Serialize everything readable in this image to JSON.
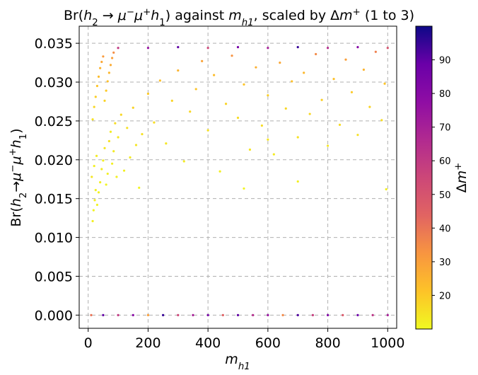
{
  "chart_data": {
    "type": "scatter",
    "title_parts": [
      "Br(",
      "h",
      "2",
      " → ",
      "μ",
      "−",
      "μ",
      "+",
      "h",
      "1",
      ") against ",
      "m",
      "h1",
      ", scaled by Δ",
      "m",
      "+",
      " (1 to 3)"
    ],
    "xlabel_parts": [
      "m",
      "h1"
    ],
    "ylabel_parts": [
      "Br(",
      "h",
      "2",
      "→",
      "μ",
      "−",
      "μ",
      "+",
      "h",
      "1",
      ")"
    ],
    "colorbar_label_parts": [
      "Δ",
      "m",
      "+"
    ],
    "xlim": [
      -30,
      1030
    ],
    "ylim": [
      -0.0017,
      0.0372
    ],
    "x_ticks": [
      0,
      200,
      400,
      600,
      800,
      1000
    ],
    "x_tick_labels": [
      "0",
      "200",
      "400",
      "600",
      "800",
      "1000"
    ],
    "y_ticks": [
      0.0,
      0.005,
      0.01,
      0.015,
      0.02,
      0.025,
      0.03,
      0.035
    ],
    "y_tick_labels": [
      "0.000",
      "0.005",
      "0.010",
      "0.015",
      "0.020",
      "0.025",
      "0.030",
      "0.035"
    ],
    "grid": true,
    "colorbar": {
      "colormap": "plasma_r",
      "range": [
        10,
        100
      ],
      "ticks": [
        20,
        30,
        40,
        50,
        60,
        70,
        80,
        90
      ],
      "tick_labels": [
        "20",
        "30",
        "40",
        "50",
        "60",
        "70",
        "80",
        "90"
      ]
    },
    "series": [
      {
        "kind": "upper-band",
        "x_range": [
          10,
          1000
        ],
        "y_cap": 0.0345,
        "points": [
          [
            15,
            0.0121,
            12
          ],
          [
            18,
            0.0135,
            11
          ],
          [
            22,
            0.0148,
            13
          ],
          [
            25,
            0.0161,
            12
          ],
          [
            30,
            0.0142,
            11
          ],
          [
            12,
            0.0178,
            14
          ],
          [
            20,
            0.0192,
            12
          ],
          [
            28,
            0.0205,
            13
          ],
          [
            35,
            0.0158,
            11
          ],
          [
            40,
            0.0171,
            12
          ],
          [
            45,
            0.0188,
            13
          ],
          [
            50,
            0.0199,
            12
          ],
          [
            55,
            0.0215,
            14
          ],
          [
            60,
            0.0168,
            11
          ],
          [
            65,
            0.0182,
            12
          ],
          [
            70,
            0.0224,
            15
          ],
          [
            75,
            0.0236,
            13
          ],
          [
            80,
            0.0195,
            12
          ],
          [
            85,
            0.0211,
            13
          ],
          [
            90,
            0.0247,
            16
          ],
          [
            95,
            0.0178,
            12
          ],
          [
            100,
            0.0229,
            14
          ],
          [
            110,
            0.0258,
            17
          ],
          [
            120,
            0.0186,
            12
          ],
          [
            130,
            0.0241,
            15
          ],
          [
            140,
            0.0203,
            13
          ],
          [
            150,
            0.0267,
            18
          ],
          [
            160,
            0.0219,
            14
          ],
          [
            170,
            0.0164,
            11
          ],
          [
            180,
            0.0233,
            15
          ],
          [
            15,
            0.0252,
            15
          ],
          [
            20,
            0.0268,
            17
          ],
          [
            25,
            0.0281,
            19
          ],
          [
            30,
            0.0295,
            21
          ],
          [
            35,
            0.0307,
            23
          ],
          [
            40,
            0.0318,
            25
          ],
          [
            45,
            0.0326,
            28
          ],
          [
            50,
            0.0333,
            31
          ],
          [
            55,
            0.0276,
            18
          ],
          [
            60,
            0.0289,
            20
          ],
          [
            65,
            0.0301,
            22
          ],
          [
            70,
            0.0312,
            24
          ],
          [
            75,
            0.0322,
            27
          ],
          [
            80,
            0.0331,
            30
          ],
          [
            85,
            0.0338,
            34
          ],
          [
            200,
            0.0285,
            20
          ],
          [
            220,
            0.0248,
            16
          ],
          [
            240,
            0.0302,
            22
          ],
          [
            260,
            0.0221,
            14
          ],
          [
            280,
            0.0276,
            18
          ],
          [
            300,
            0.0315,
            25
          ],
          [
            320,
            0.0198,
            13
          ],
          [
            340,
            0.0262,
            17
          ],
          [
            360,
            0.0291,
            21
          ],
          [
            380,
            0.0327,
            29
          ],
          [
            400,
            0.0238,
            15
          ],
          [
            420,
            0.0309,
            23
          ],
          [
            440,
            0.0185,
            12
          ],
          [
            460,
            0.0272,
            18
          ],
          [
            480,
            0.0334,
            33
          ],
          [
            500,
            0.0254,
            16
          ],
          [
            520,
            0.0297,
            21
          ],
          [
            540,
            0.0213,
            14
          ],
          [
            560,
            0.0319,
            26
          ],
          [
            580,
            0.0244,
            16
          ],
          [
            600,
            0.0283,
            19
          ],
          [
            620,
            0.0207,
            13
          ],
          [
            640,
            0.0325,
            28
          ],
          [
            660,
            0.0266,
            17
          ],
          [
            680,
            0.0301,
            22
          ],
          [
            700,
            0.0229,
            15
          ],
          [
            720,
            0.0312,
            24
          ],
          [
            740,
            0.0259,
            17
          ],
          [
            760,
            0.0336,
            35
          ],
          [
            780,
            0.0277,
            19
          ],
          [
            800,
            0.0218,
            14
          ],
          [
            820,
            0.0304,
            22
          ],
          [
            840,
            0.0245,
            16
          ],
          [
            860,
            0.0329,
            30
          ],
          [
            880,
            0.0287,
            20
          ],
          [
            900,
            0.0232,
            15
          ],
          [
            920,
            0.0316,
            25
          ],
          [
            940,
            0.0268,
            18
          ],
          [
            960,
            0.0339,
            37
          ],
          [
            980,
            0.0251,
            16
          ],
          [
            995,
            0.0162,
            12
          ],
          [
            990,
            0.0298,
            21
          ],
          [
            700,
            0.0172,
            12
          ],
          [
            520,
            0.0163,
            11
          ],
          [
            600,
            0.0226,
            14
          ],
          [
            100,
            0.0344,
            60
          ],
          [
            200,
            0.0344,
            75
          ],
          [
            300,
            0.0345,
            90
          ],
          [
            400,
            0.0344,
            55
          ],
          [
            500,
            0.0345,
            85
          ],
          [
            600,
            0.0344,
            70
          ],
          [
            700,
            0.0345,
            95
          ],
          [
            800,
            0.0344,
            65
          ],
          [
            900,
            0.0345,
            80
          ],
          [
            1000,
            0.0344,
            50
          ]
        ]
      },
      {
        "kind": "zero-band",
        "x_range": [
          10,
          1000
        ],
        "y_level": 0.0,
        "points": [
          [
            10,
            0.0,
            40
          ],
          [
            50,
            0.0,
            90
          ],
          [
            100,
            0.0,
            60
          ],
          [
            150,
            0.0,
            80
          ],
          [
            200,
            0.0,
            30
          ],
          [
            250,
            0.0,
            95
          ],
          [
            300,
            0.0,
            55
          ],
          [
            350,
            0.0,
            70
          ],
          [
            400,
            0.0,
            85
          ],
          [
            450,
            0.0,
            45
          ],
          [
            500,
            0.0,
            90
          ],
          [
            550,
            0.0,
            65
          ],
          [
            600,
            0.0,
            75
          ],
          [
            650,
            0.0,
            35
          ],
          [
            700,
            0.0,
            92
          ],
          [
            750,
            0.0,
            58
          ],
          [
            800,
            0.0,
            82
          ],
          [
            850,
            0.0,
            48
          ],
          [
            900,
            0.0,
            88
          ],
          [
            950,
            0.0,
            62
          ],
          [
            1000,
            0.0,
            70
          ]
        ]
      }
    ]
  }
}
